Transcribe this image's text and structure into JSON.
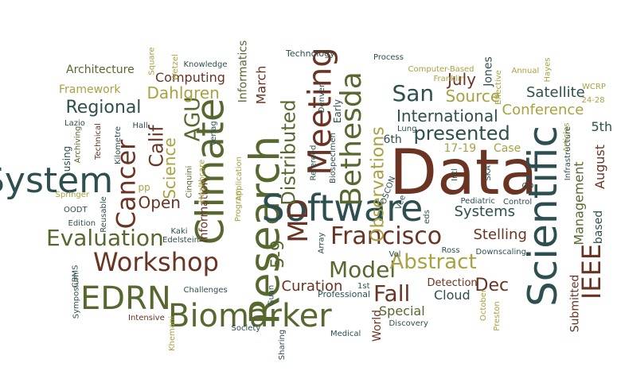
{
  "colors": {
    "teal": "#2e4f4f",
    "green": "#56682e",
    "brown": "#6a3322",
    "olive": "#a8a242"
  },
  "words": [
    {
      "text": "Data",
      "color": "brown",
      "font_px": 78,
      "rotation_deg": 0
    },
    {
      "text": "Scientific",
      "color": "teal",
      "font_px": 50,
      "rotation_deg": -90
    },
    {
      "text": "Research",
      "color": "green",
      "font_px": 52,
      "rotation_deg": -90
    },
    {
      "text": "Software",
      "color": "teal",
      "font_px": 46,
      "rotation_deg": 0
    },
    {
      "text": "Climate",
      "color": "green",
      "font_px": 48,
      "rotation_deg": -90
    },
    {
      "text": "System",
      "color": "teal",
      "font_px": 44,
      "rotation_deg": 0
    },
    {
      "text": "Biomarker",
      "color": "green",
      "font_px": 40,
      "rotation_deg": 0
    },
    {
      "text": "EDRN",
      "color": "green",
      "font_px": 40,
      "rotation_deg": 0
    },
    {
      "text": "Meeting",
      "color": "brown",
      "font_px": 40,
      "rotation_deg": -90
    },
    {
      "text": "Bethesda",
      "color": "green",
      "font_px": 36,
      "rotation_deg": -90
    },
    {
      "text": "MD",
      "color": "brown",
      "font_px": 34,
      "rotation_deg": -90
    },
    {
      "text": "Cancer",
      "color": "brown",
      "font_px": 32,
      "rotation_deg": -90
    },
    {
      "text": "Workshop",
      "color": "brown",
      "font_px": 32,
      "rotation_deg": 0
    },
    {
      "text": "Evaluation",
      "color": "green",
      "font_px": 28,
      "rotation_deg": 0
    },
    {
      "text": "Francisco",
      "color": "brown",
      "font_px": 30,
      "rotation_deg": 0
    },
    {
      "text": "IEEE",
      "color": "brown",
      "font_px": 32,
      "rotation_deg": -90
    },
    {
      "text": "Model",
      "color": "green",
      "font_px": 28,
      "rotation_deg": 0
    },
    {
      "text": "San",
      "color": "teal",
      "font_px": 28,
      "rotation_deg": 0
    },
    {
      "text": "Abstract",
      "color": "olive",
      "font_px": 26,
      "rotation_deg": 0
    },
    {
      "text": "Fall",
      "color": "brown",
      "font_px": 28,
      "rotation_deg": 0
    },
    {
      "text": "Distributed",
      "color": "green",
      "font_px": 24,
      "rotation_deg": -90
    },
    {
      "text": "presented",
      "color": "teal",
      "font_px": 24,
      "rotation_deg": 0
    },
    {
      "text": "AGU",
      "color": "green",
      "font_px": 26,
      "rotation_deg": -90
    },
    {
      "text": "Calif",
      "color": "brown",
      "font_px": 24,
      "rotation_deg": -90
    },
    {
      "text": "Regional",
      "color": "teal",
      "font_px": 22,
      "rotation_deg": 0
    },
    {
      "text": "Observations",
      "color": "olive",
      "font_px": 22,
      "rotation_deg": -90
    },
    {
      "text": "International",
      "color": "teal",
      "font_px": 20,
      "rotation_deg": 0
    },
    {
      "text": "5-9",
      "color": "green",
      "font_px": 22,
      "rotation_deg": -90
    },
    {
      "text": "Curation",
      "color": "brown",
      "font_px": 18,
      "rotation_deg": 0
    },
    {
      "text": "Dahlgren",
      "color": "olive",
      "font_px": 20,
      "rotation_deg": 0
    },
    {
      "text": "Science",
      "color": "olive",
      "font_px": 20,
      "rotation_deg": -90
    },
    {
      "text": "Open",
      "color": "brown",
      "font_px": 20,
      "rotation_deg": 0
    },
    {
      "text": "Source",
      "color": "olive",
      "font_px": 20,
      "rotation_deg": 0
    },
    {
      "text": "Conference",
      "color": "olive",
      "font_px": 18,
      "rotation_deg": 0
    },
    {
      "text": "Dec",
      "color": "brown",
      "font_px": 22,
      "rotation_deg": 0
    },
    {
      "text": "Stelling",
      "color": "brown",
      "font_px": 18,
      "rotation_deg": 0
    },
    {
      "text": "Systems",
      "color": "teal",
      "font_px": 18,
      "rotation_deg": 0
    },
    {
      "text": "Satellite",
      "color": "teal",
      "font_px": 18,
      "rotation_deg": 0
    },
    {
      "text": "July",
      "color": "brown",
      "font_px": 20,
      "rotation_deg": 0
    },
    {
      "text": "Management",
      "color": "green",
      "font_px": 16,
      "rotation_deg": -90
    },
    {
      "text": "August",
      "color": "brown",
      "font_px": 16,
      "rotation_deg": -90
    },
    {
      "text": "Special",
      "color": "green",
      "font_px": 16,
      "rotation_deg": 0
    },
    {
      "text": "Cloud",
      "color": "teal",
      "font_px": 16,
      "rotation_deg": 0
    },
    {
      "text": "Computing",
      "color": "brown",
      "font_px": 16,
      "rotation_deg": 0
    },
    {
      "text": "Architecture",
      "color": "green",
      "font_px": 14,
      "rotation_deg": 0
    },
    {
      "text": "Framework",
      "color": "olive",
      "font_px": 14,
      "rotation_deg": 0
    },
    {
      "text": "Information",
      "color": "brown",
      "font_px": 14,
      "rotation_deg": -90
    },
    {
      "text": "Informatics",
      "color": "green",
      "font_px": 14,
      "rotation_deg": -90
    },
    {
      "text": "March",
      "color": "brown",
      "font_px": 16,
      "rotation_deg": -90
    },
    {
      "text": "Case",
      "color": "olive",
      "font_px": 14,
      "rotation_deg": 0
    },
    {
      "text": "6th",
      "color": "teal",
      "font_px": 14,
      "rotation_deg": 0
    },
    {
      "text": "5th",
      "color": "teal",
      "font_px": 16,
      "rotation_deg": 0
    },
    {
      "text": "17-19",
      "color": "olive",
      "font_px": 14,
      "rotation_deg": 0
    },
    {
      "text": "Detection",
      "color": "brown",
      "font_px": 13,
      "rotation_deg": 0
    },
    {
      "text": "Submitted",
      "color": "brown",
      "font_px": 14,
      "rotation_deg": -90
    },
    {
      "text": "based",
      "color": "teal",
      "font_px": 14,
      "rotation_deg": -90
    },
    {
      "text": "Jones",
      "color": "teal",
      "font_px": 14,
      "rotation_deg": -90
    },
    {
      "text": "World",
      "color": "brown",
      "font_px": 14,
      "rotation_deg": -90
    },
    {
      "text": "Early",
      "color": "teal",
      "font_px": 12,
      "rotation_deg": -90
    },
    {
      "text": "Technology",
      "color": "teal",
      "font_px": 11,
      "rotation_deg": 0
    },
    {
      "text": "Professional",
      "color": "teal",
      "font_px": 11,
      "rotation_deg": 0
    },
    {
      "text": "Process",
      "color": "teal",
      "font_px": 10,
      "rotation_deg": 0
    },
    {
      "text": "Computer-Based",
      "color": "olive",
      "font_px": 10,
      "rotation_deg": 0
    },
    {
      "text": "Franklin",
      "color": "olive",
      "font_px": 10,
      "rotation_deg": 0
    },
    {
      "text": "Effective",
      "color": "olive",
      "font_px": 10,
      "rotation_deg": -90
    },
    {
      "text": "Annual",
      "color": "olive",
      "font_px": 10,
      "rotation_deg": 0
    },
    {
      "text": "Hayes",
      "color": "olive",
      "font_px": 10,
      "rotation_deg": -90
    },
    {
      "text": "WCRP",
      "color": "olive",
      "font_px": 10,
      "rotation_deg": 0
    },
    {
      "text": "24-28",
      "color": "olive",
      "font_px": 10,
      "rotation_deg": 0
    },
    {
      "text": "Articles",
      "color": "olive",
      "font_px": 10,
      "rotation_deg": -90
    },
    {
      "text": "Knowledge",
      "color": "teal",
      "font_px": 10,
      "rotation_deg": 0
    },
    {
      "text": "Square",
      "color": "olive",
      "font_px": 10,
      "rotation_deg": -90
    },
    {
      "text": "Wetzel",
      "color": "olive",
      "font_px": 10,
      "rotation_deg": -90
    },
    {
      "text": "Verlag",
      "color": "teal",
      "font_px": 10,
      "rotation_deg": -90
    },
    {
      "text": "Hall",
      "color": "teal",
      "font_px": 10,
      "rotation_deg": 0
    },
    {
      "text": "Lazio",
      "color": "teal",
      "font_px": 10,
      "rotation_deg": 0
    },
    {
      "text": "Archiving",
      "color": "green",
      "font_px": 10,
      "rotation_deg": -90
    },
    {
      "text": "Technical",
      "color": "brown",
      "font_px": 10,
      "rotation_deg": -90
    },
    {
      "text": "Kilometre",
      "color": "teal",
      "font_px": 10,
      "rotation_deg": -90
    },
    {
      "text": "using",
      "color": "teal",
      "font_px": 12,
      "rotation_deg": -90
    },
    {
      "text": "Healthcare",
      "color": "olive",
      "font_px": 10,
      "rotation_deg": -90
    },
    {
      "text": "Cinquini",
      "color": "green",
      "font_px": 10,
      "rotation_deg": -90
    },
    {
      "text": "Denver",
      "color": "teal",
      "font_px": 10,
      "rotation_deg": -90
    },
    {
      "text": "Refereed",
      "color": "teal",
      "font_px": 10,
      "rotation_deg": -90
    },
    {
      "text": "Biospecimen",
      "color": "teal",
      "font_px": 10,
      "rotation_deg": -90
    },
    {
      "text": "Lung",
      "color": "teal",
      "font_px": 10,
      "rotation_deg": 0
    },
    {
      "text": "OSCON",
      "color": "teal",
      "font_px": 10,
      "rotation_deg": -70
    },
    {
      "text": "Vee",
      "color": "teal",
      "font_px": 10,
      "rotation_deg": -70
    },
    {
      "text": "Intl",
      "color": "teal",
      "font_px": 10,
      "rotation_deg": -90
    },
    {
      "text": "SKA",
      "color": "teal",
      "font_px": 10,
      "rotation_deg": -90
    },
    {
      "text": "Infrastructure",
      "color": "teal",
      "font_px": 10,
      "rotation_deg": -90
    },
    {
      "text": "CO",
      "color": "teal",
      "font_px": 10,
      "rotation_deg": 0
    },
    {
      "text": "Pediatric",
      "color": "teal",
      "font_px": 10,
      "rotation_deg": 0
    },
    {
      "text": "Control",
      "color": "teal",
      "font_px": 10,
      "rotation_deg": 0
    },
    {
      "text": "Springer",
      "color": "olive",
      "font_px": 10,
      "rotation_deg": 0
    },
    {
      "text": "OODT",
      "color": "teal",
      "font_px": 10,
      "rotation_deg": 0
    },
    {
      "text": "Reusable",
      "color": "teal",
      "font_px": 10,
      "rotation_deg": -90
    },
    {
      "text": "Edition",
      "color": "teal",
      "font_px": 10,
      "rotation_deg": 0
    },
    {
      "text": "Kaki",
      "color": "teal",
      "font_px": 10,
      "rotation_deg": 0
    },
    {
      "text": "Edelstein",
      "color": "teal",
      "font_px": 10,
      "rotation_deg": 0
    },
    {
      "text": "pp",
      "color": "olive",
      "font_px": 12,
      "rotation_deg": 0
    },
    {
      "text": "Application",
      "color": "olive",
      "font_px": 10,
      "rotation_deg": -90
    },
    {
      "text": "Program",
      "color": "olive",
      "font_px": 10,
      "rotation_deg": -90
    },
    {
      "text": "eds",
      "color": "teal",
      "font_px": 10,
      "rotation_deg": -90
    },
    {
      "text": "Ross",
      "color": "teal",
      "font_px": 10,
      "rotation_deg": 0
    },
    {
      "text": "Array",
      "color": "teal",
      "font_px": 10,
      "rotation_deg": -90
    },
    {
      "text": "Downscaling",
      "color": "teal",
      "font_px": 10,
      "rotation_deg": 0
    },
    {
      "text": "Vol",
      "color": "teal",
      "font_px": 10,
      "rotation_deg": 0
    },
    {
      "text": "CBMS",
      "color": "teal",
      "font_px": 10,
      "rotation_deg": -90
    },
    {
      "text": "Symposium",
      "color": "teal",
      "font_px": 10,
      "rotation_deg": -90
    },
    {
      "text": "Challenges",
      "color": "teal",
      "font_px": 10,
      "rotation_deg": 0
    },
    {
      "text": "Guan",
      "color": "teal",
      "font_px": 10,
      "rotation_deg": -90
    },
    {
      "text": "1st",
      "color": "teal",
      "font_px": 10,
      "rotation_deg": 0
    },
    {
      "text": "Intensive",
      "color": "brown",
      "font_px": 10,
      "rotation_deg": 0
    },
    {
      "text": "Khemani",
      "color": "olive",
      "font_px": 10,
      "rotation_deg": -90
    },
    {
      "text": "Society",
      "color": "teal",
      "font_px": 10,
      "rotation_deg": 0
    },
    {
      "text": "Sharing",
      "color": "teal",
      "font_px": 10,
      "rotation_deg": -90
    },
    {
      "text": "Medical",
      "color": "teal",
      "font_px": 10,
      "rotation_deg": 0
    },
    {
      "text": "Discovery",
      "color": "teal",
      "font_px": 10,
      "rotation_deg": 0
    },
    {
      "text": "October",
      "color": "olive",
      "font_px": 10,
      "rotation_deg": -90
    },
    {
      "text": "Preston",
      "color": "olive",
      "font_px": 10,
      "rotation_deg": -90
    }
  ]
}
